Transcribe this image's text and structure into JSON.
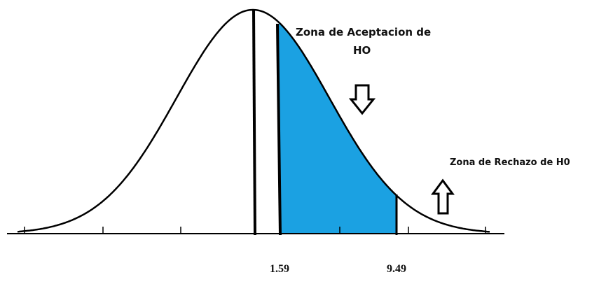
{
  "labels": {
    "acceptance_line1": "Zona de Aceptacion de",
    "acceptance_line2": "HO",
    "rejection": "Zona de Rechazo de H0",
    "lower_value": "1.59",
    "upper_value": "9.49"
  }
}
